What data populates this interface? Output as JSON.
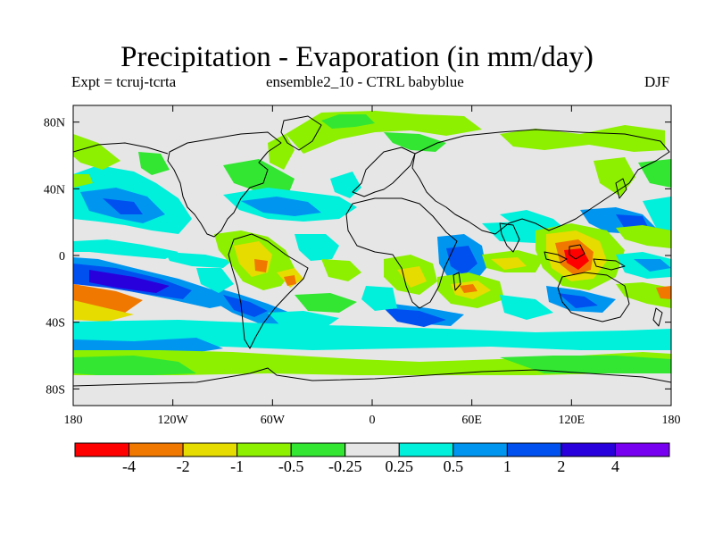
{
  "title": "Precipitation - Evaporation (in mm/day)",
  "subtitle_left": "Expt = tcruj-tcrta",
  "subtitle_center": "ensemble2_10 - CTRL babyblue",
  "season": "DJF",
  "map": {
    "background_color": "#e6e6e6",
    "x_ticks": [
      "180",
      "120W",
      "60W",
      "0",
      "60E",
      "120E",
      "180"
    ],
    "y_ticks": [
      "80N",
      "40N",
      "0",
      "40S",
      "80S"
    ],
    "x_tick_lons": [
      -180,
      -120,
      -60,
      0,
      60,
      120,
      180
    ],
    "y_tick_lats": [
      80,
      40,
      0,
      -40,
      -80
    ],
    "lon_range": [
      -180,
      180
    ],
    "lat_range": [
      -90,
      90
    ]
  },
  "colorbar": {
    "colors": [
      "#ff0000",
      "#f07800",
      "#e6dc00",
      "#8cf000",
      "#32e632",
      "#e6e6e6",
      "#00f0dc",
      "#0096f0",
      "#0050f0",
      "#2800dc",
      "#7800f0"
    ],
    "labels": [
      "-4",
      "-2",
      "-1",
      "-0.5",
      "-0.25",
      "0.25",
      "0.5",
      "1",
      "2",
      "4"
    ]
  }
}
